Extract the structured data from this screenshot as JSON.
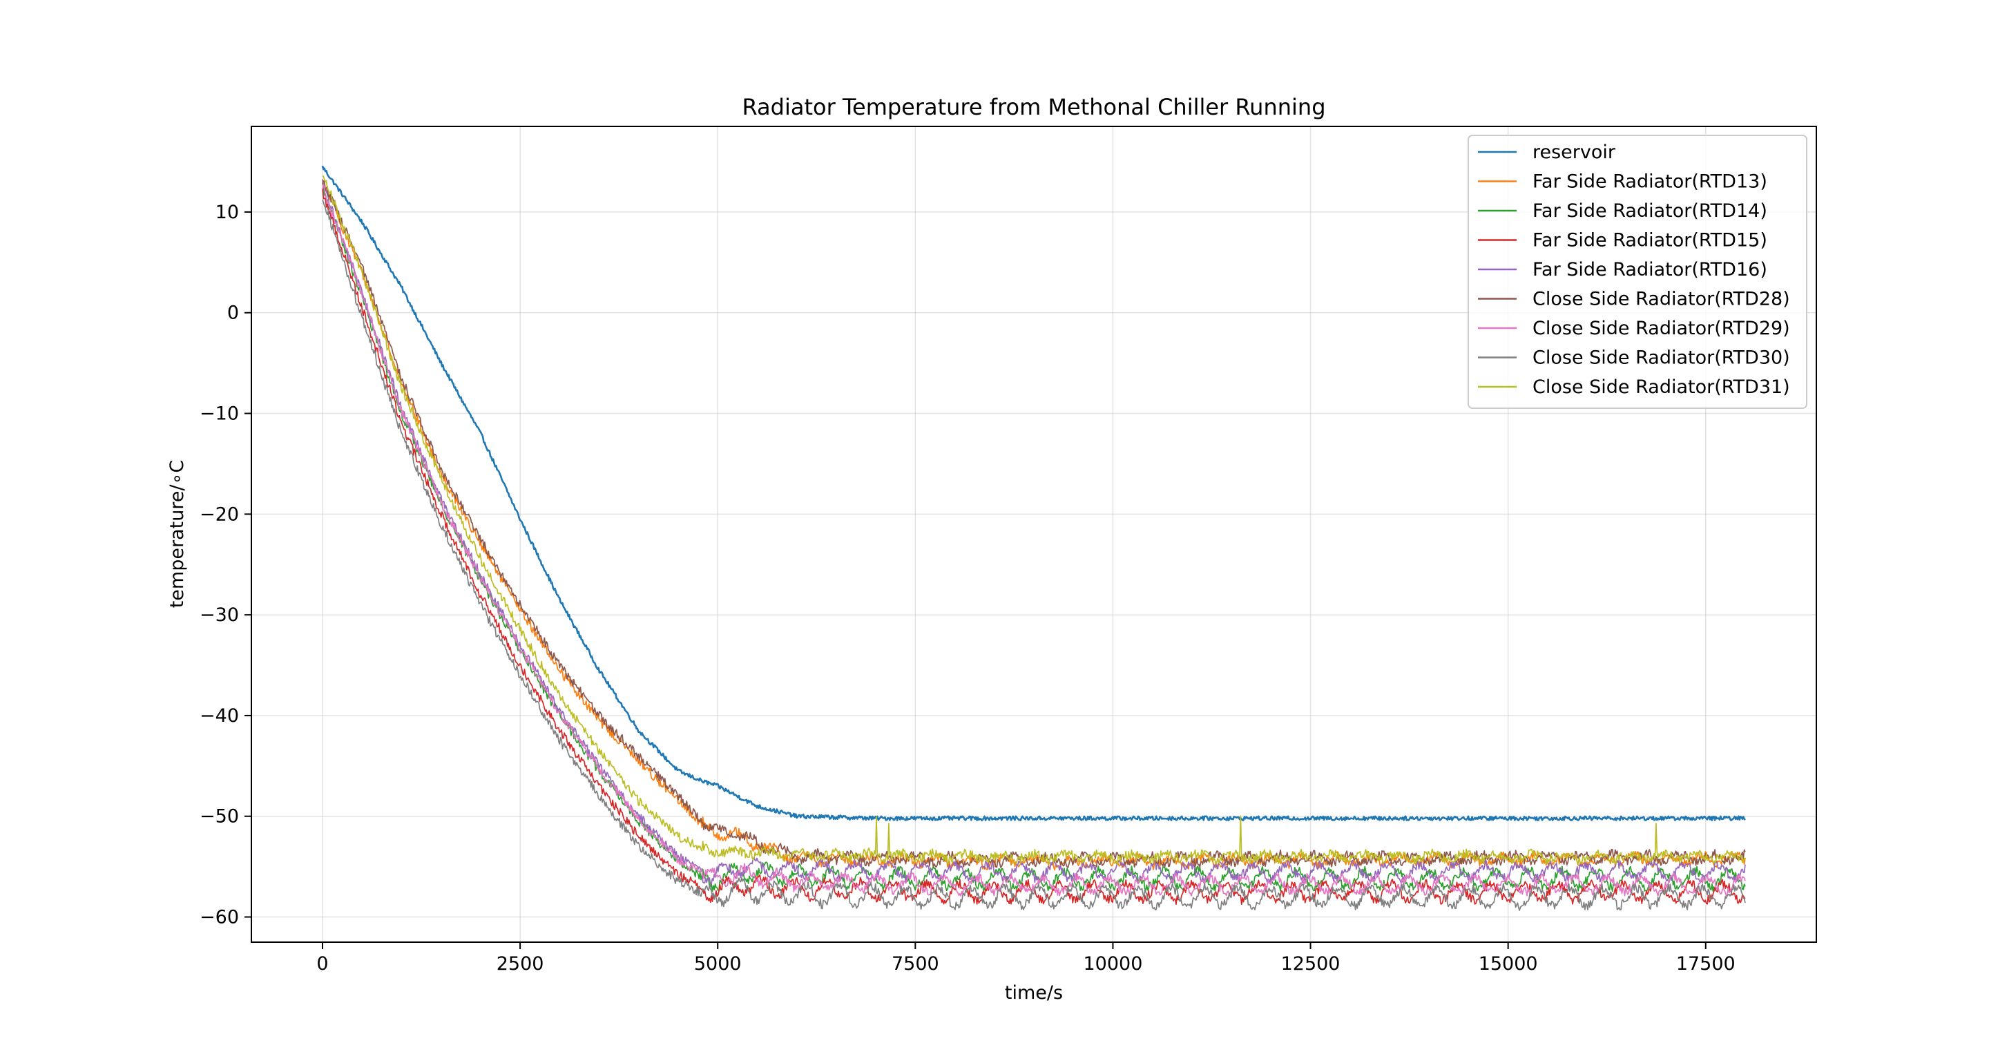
{
  "chart_data": {
    "type": "line",
    "title": "Radiator Temperature from Methonal Chiller Running",
    "xlabel": "time/s",
    "ylabel": "temperature/$^\\circ$C",
    "ylabel_display": "temperature/∘C",
    "xlim": [
      -900,
      18900
    ],
    "ylim": [
      -62.5,
      18.5
    ],
    "xticks": [
      0,
      2500,
      5000,
      7500,
      10000,
      12500,
      15000,
      17500
    ],
    "xtick_labels": [
      "0",
      "2500",
      "5000",
      "7500",
      "10000",
      "12500",
      "15000",
      "17500"
    ],
    "yticks": [
      10,
      0,
      -10,
      -20,
      -30,
      -40,
      -50,
      -60
    ],
    "ytick_labels": [
      "10",
      "0",
      "−10",
      "−20",
      "−30",
      "−40",
      "−50",
      "−60"
    ],
    "grid": true,
    "legend_position": "upper right",
    "series": [
      {
        "name": "reservoir",
        "color": "#1f77b4",
        "x": [
          0,
          500,
          1000,
          1500,
          2000,
          2500,
          3000,
          3500,
          4000,
          4500,
          4800,
          5000,
          5500,
          6000,
          7000,
          8000,
          9000,
          10000,
          12000,
          14000,
          16000,
          18000
        ],
        "y": [
          14.5,
          9,
          2.5,
          -5,
          -12,
          -20.5,
          -28.5,
          -35.5,
          -41.5,
          -45.5,
          -46.5,
          -47,
          -49,
          -50,
          -50.2,
          -50.2,
          -50.2,
          -50.2,
          -50.2,
          -50.2,
          -50.2,
          -50.2
        ],
        "noise": 0.2,
        "osc": 0
      },
      {
        "name": "Far Side Radiator(RTD13)",
        "color": "#ff7f0e",
        "x": [
          0,
          500,
          1000,
          1500,
          2000,
          2500,
          3000,
          3500,
          4000,
          4500,
          4900,
          5200,
          5600,
          6000,
          8000,
          10000,
          12000,
          14000,
          16000,
          18000
        ],
        "y": [
          13,
          4,
          -7,
          -16,
          -23,
          -29.5,
          -35.5,
          -40.5,
          -44.5,
          -48.5,
          -51.5,
          -51.8,
          -53.2,
          -54.2,
          -54.5,
          -54.5,
          -54.4,
          -54.3,
          -54.3,
          -54.2
        ],
        "noise": 0.45,
        "osc": 0.4
      },
      {
        "name": "Far Side Radiator(RTD14)",
        "color": "#2ca02c",
        "x": [
          0,
          500,
          1000,
          1500,
          2000,
          2500,
          3000,
          3500,
          4000,
          4500,
          4900,
          5300,
          6000,
          8000,
          10000,
          12000,
          14000,
          16000,
          18000
        ],
        "y": [
          12.5,
          1.5,
          -10,
          -19,
          -26.5,
          -33.5,
          -40,
          -45.5,
          -50.5,
          -54.5,
          -56.5,
          -55.5,
          -56,
          -56.2,
          -56.2,
          -56.2,
          -56.2,
          -56.2,
          -56.2
        ],
        "noise": 0.45,
        "osc": 0.8
      },
      {
        "name": "Far Side Radiator(RTD15)",
        "color": "#d62728",
        "x": [
          0,
          500,
          1000,
          1500,
          2000,
          2500,
          3000,
          3500,
          4000,
          4500,
          4900,
          5300,
          6000,
          8000,
          10000,
          12000,
          14000,
          16000,
          18000
        ],
        "y": [
          12,
          0.5,
          -11,
          -20,
          -28,
          -35,
          -41.5,
          -47,
          -52,
          -55.8,
          -57.5,
          -56.8,
          -57.2,
          -57.5,
          -57.5,
          -57.5,
          -57.5,
          -57.5,
          -57.5
        ],
        "noise": 0.45,
        "osc": 0.8
      },
      {
        "name": "Far Side Radiator(RTD16)",
        "color": "#9467bd",
        "x": [
          0,
          500,
          1000,
          1500,
          2000,
          2500,
          3000,
          3500,
          4000,
          4500,
          4900,
          5300,
          6000,
          8000,
          10000,
          12000,
          14000,
          16000,
          18000
        ],
        "y": [
          12.8,
          2,
          -9.5,
          -18.5,
          -26,
          -33,
          -39.5,
          -45,
          -50,
          -54,
          -56,
          -55,
          -55.3,
          -55.5,
          -55.5,
          -55.5,
          -55.5,
          -55.5,
          -55.5
        ],
        "noise": 0.45,
        "osc": 0.7
      },
      {
        "name": "Close Side Radiator(RTD28)",
        "color": "#8c564b",
        "x": [
          0,
          500,
          1000,
          1500,
          2000,
          2500,
          3000,
          3500,
          4000,
          4500,
          4900,
          5200,
          5600,
          6000,
          8000,
          10000,
          12000,
          14000,
          16000,
          18000
        ],
        "y": [
          13.2,
          4.5,
          -6.5,
          -15.5,
          -22.5,
          -29,
          -35,
          -40,
          -44,
          -48,
          -51.3,
          -51.6,
          -53,
          -54,
          -54.3,
          -54.3,
          -54.2,
          -54.2,
          -54.1,
          -54.1
        ],
        "noise": 0.45,
        "osc": 0.4
      },
      {
        "name": "Close Side Radiator(RTD29)",
        "color": "#e377c2",
        "x": [
          0,
          500,
          1000,
          1500,
          2000,
          2500,
          3000,
          3500,
          4000,
          4500,
          4900,
          5300,
          6000,
          8000,
          10000,
          12000,
          14000,
          16000,
          18000
        ],
        "y": [
          12.6,
          1.8,
          -9.8,
          -18.8,
          -26.3,
          -33.3,
          -39.8,
          -45.3,
          -50.3,
          -54.3,
          -56.2,
          -55.8,
          -56.5,
          -56.8,
          -56.8,
          -56.8,
          -56.8,
          -56.8,
          -56.8
        ],
        "noise": 0.45,
        "osc": 0.7
      },
      {
        "name": "Close Side Radiator(RTD30)",
        "color": "#7f7f7f",
        "x": [
          0,
          500,
          1000,
          1500,
          2000,
          2500,
          3000,
          3500,
          4000,
          4500,
          4900,
          5300,
          6000,
          8000,
          10000,
          12000,
          14000,
          16000,
          18000
        ],
        "y": [
          11.5,
          -0.5,
          -12,
          -21,
          -29,
          -36,
          -42.5,
          -48,
          -53,
          -56.5,
          -58,
          -57.3,
          -57.8,
          -58,
          -58,
          -58,
          -58,
          -58,
          -58
        ],
        "noise": 0.45,
        "osc": 0.9
      },
      {
        "name": "Close Side Radiator(RTD31)",
        "color": "#bcbd22",
        "x": [
          0,
          500,
          1000,
          1500,
          2000,
          2500,
          3000,
          3500,
          4000,
          4500,
          4900,
          5200,
          6000,
          8000,
          10000,
          12000,
          14000,
          16000,
          18000
        ],
        "y": [
          13.8,
          4,
          -7.5,
          -16.5,
          -24.5,
          -31.5,
          -38,
          -43.5,
          -48.5,
          -52,
          -53.5,
          -53.5,
          -53.8,
          -54,
          -54,
          -54,
          -54,
          -54,
          -54
        ],
        "noise": 0.45,
        "osc": 0.3
      }
    ]
  }
}
